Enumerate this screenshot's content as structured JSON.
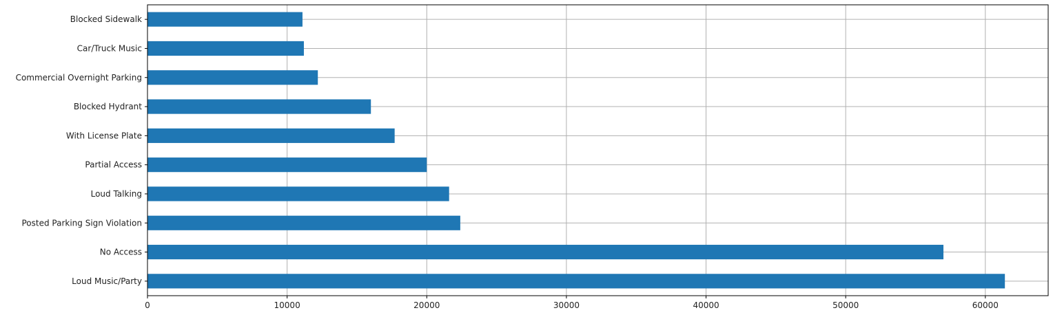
{
  "chart_data": {
    "type": "bar",
    "orientation": "horizontal",
    "categories": [
      "Loud Music/Party",
      "No Access",
      "Posted Parking Sign Violation",
      "Loud Talking",
      "Partial Access",
      "With License Plate",
      "Blocked Hydrant",
      "Commercial Overnight Parking",
      "Car/Truck Music",
      "Blocked Sidewalk"
    ],
    "values": [
      61400,
      57000,
      22400,
      21600,
      20000,
      17700,
      16000,
      12200,
      11200,
      11100
    ],
    "title": "",
    "xlabel": "",
    "ylabel": "",
    "xlim": [
      0,
      64500
    ],
    "xticks": [
      0,
      10000,
      20000,
      30000,
      40000,
      50000,
      60000
    ],
    "grid": true,
    "bar_color": "#1f77b4",
    "grid_color": "#b0b0b0"
  }
}
